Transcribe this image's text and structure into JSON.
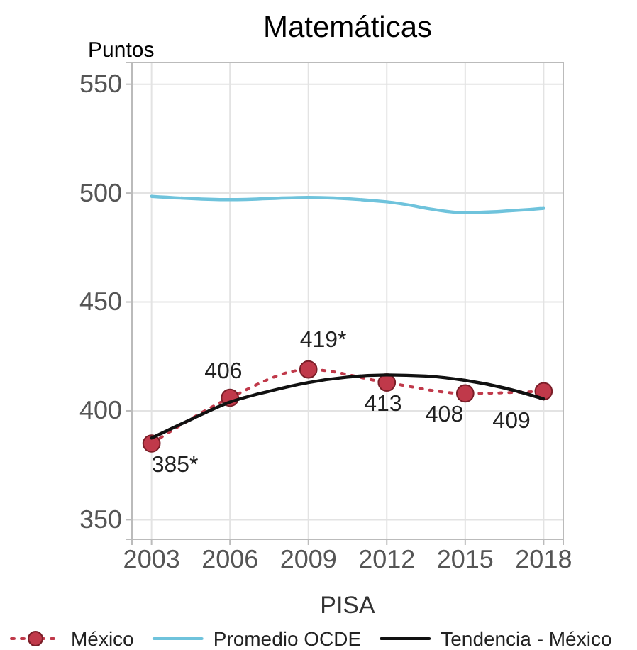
{
  "chart_data": {
    "type": "line",
    "title": "Matemáticas",
    "ylabel": "Puntos",
    "xlabel": "PISA",
    "x": [
      2003,
      2006,
      2009,
      2012,
      2015,
      2018
    ],
    "xlim": [
      2002.25,
      2018.75
    ],
    "xticks": [
      2003,
      2006,
      2009,
      2012,
      2015,
      2018
    ],
    "ylim": [
      341,
      560
    ],
    "yticks": [
      350,
      400,
      450,
      500,
      550
    ],
    "grid": true,
    "legend": "bottom",
    "series": [
      {
        "name": "México",
        "color": "#c0394a",
        "values": [
          385,
          406,
          419,
          413,
          408,
          409
        ],
        "marker": "circle",
        "line_style": "dotted",
        "value_labels": [
          "385*",
          "406",
          "419*",
          "413",
          "408",
          "409"
        ]
      },
      {
        "name": "Promedio OCDE",
        "color": "#6fc3dc",
        "values": [
          498.5,
          497,
          498,
          496,
          491,
          493
        ],
        "marker": "none",
        "line_style": "solid"
      },
      {
        "name": "Tendencia - México",
        "color": "#111111",
        "x": [
          2003,
          2004.5,
          2006,
          2007.5,
          2009,
          2010.5,
          2012,
          2013.5,
          2015,
          2016.5,
          2018
        ],
        "values": [
          387.5,
          396,
          404,
          409,
          413,
          415.5,
          416.5,
          416,
          414,
          410.5,
          405.5
        ],
        "marker": "none",
        "line_style": "solid"
      }
    ]
  }
}
